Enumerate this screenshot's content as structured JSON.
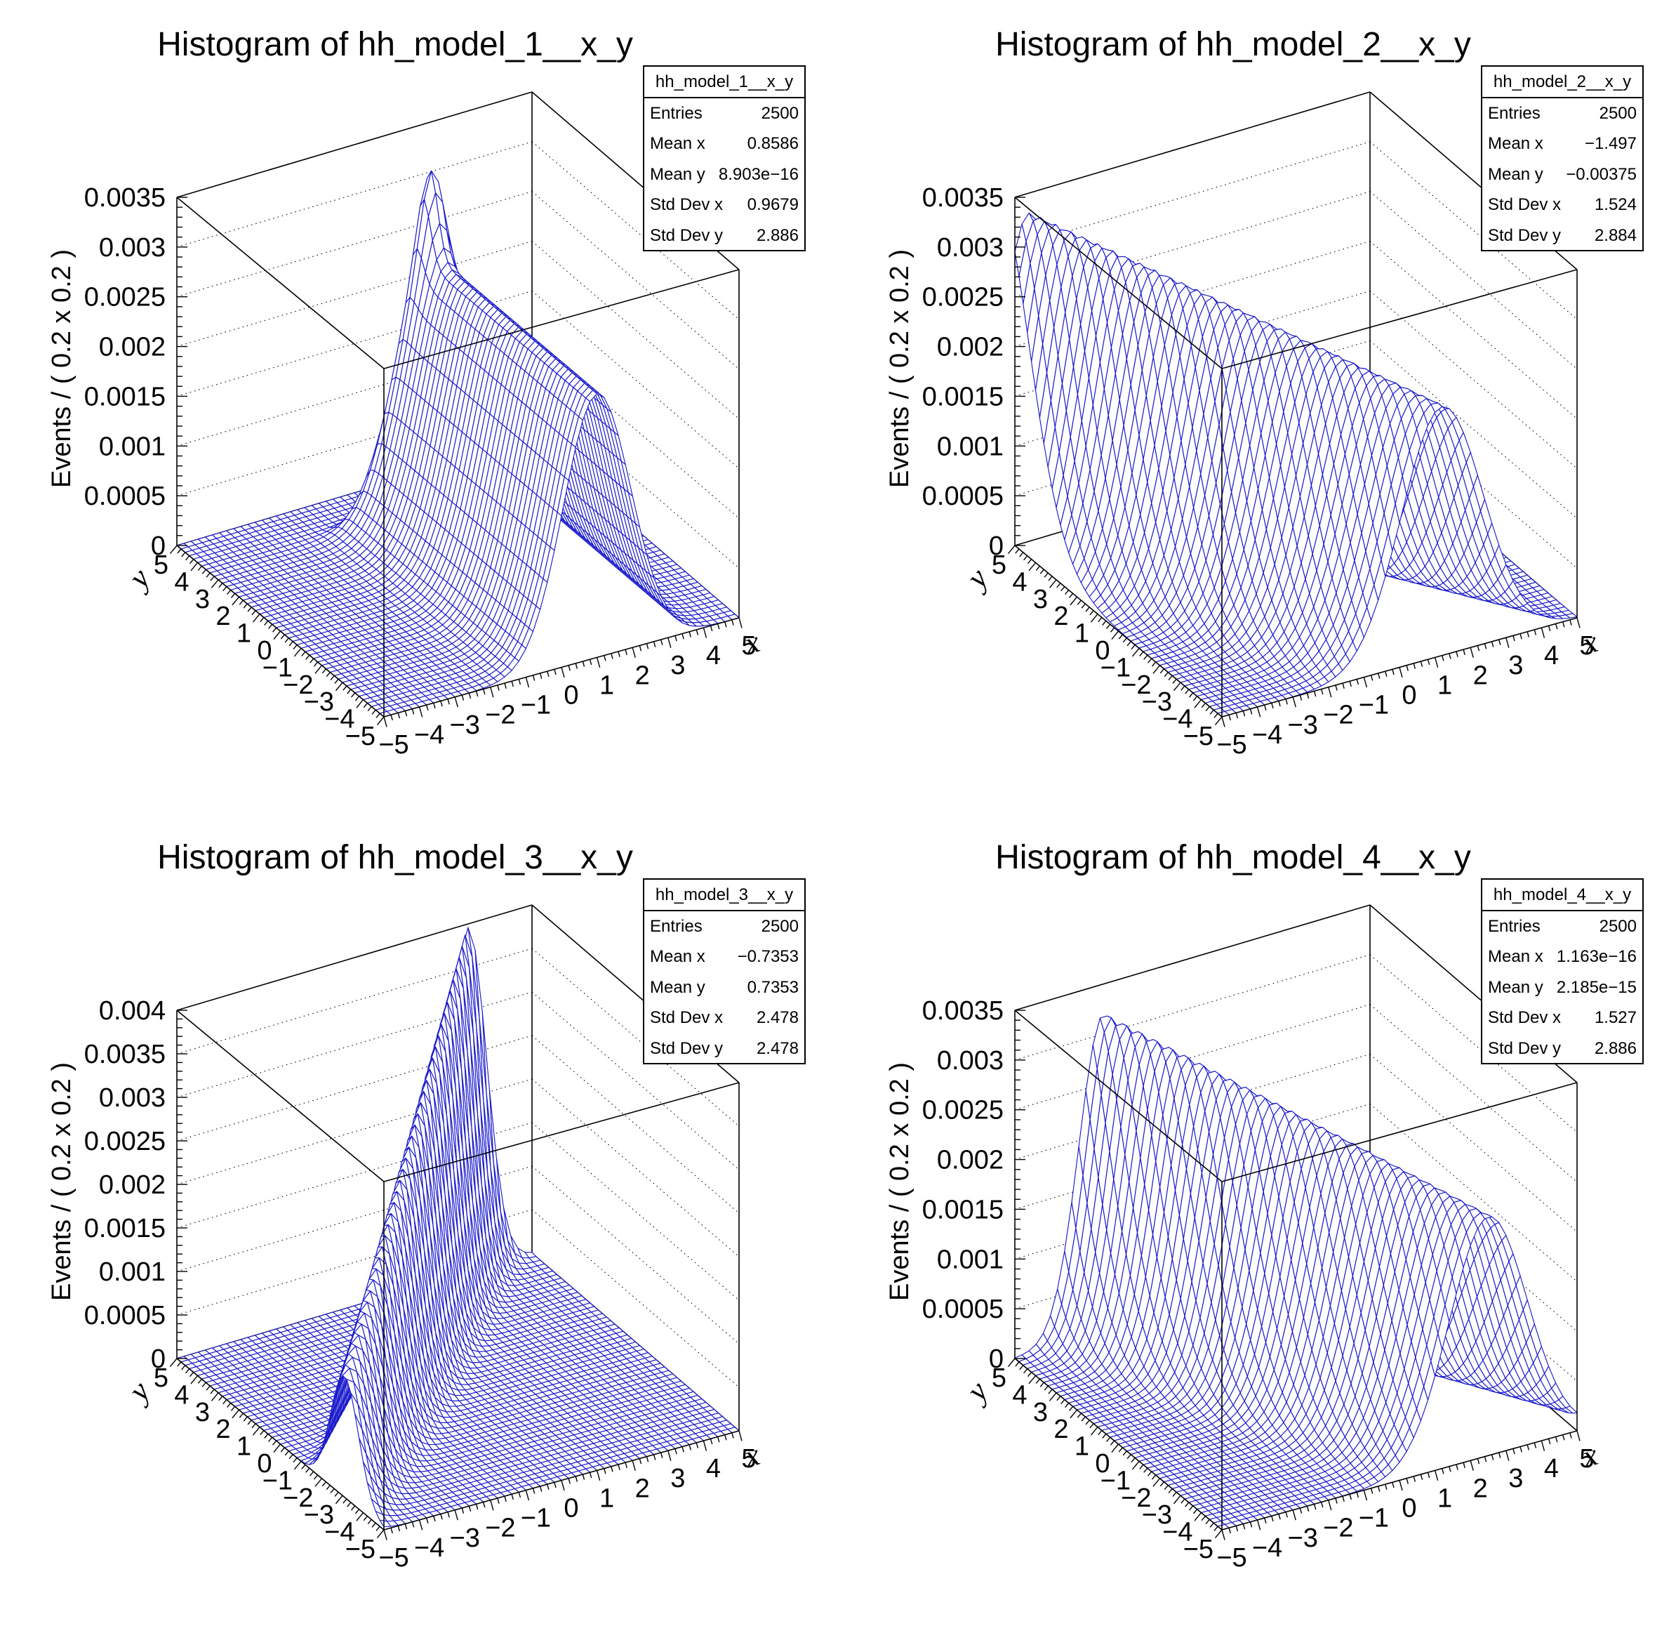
{
  "page": {
    "background": "#ffffff"
  },
  "colors": {
    "mesh": "#1c1ccd",
    "frame": "#000000",
    "grid_dotted": "#000000",
    "text": "#000000",
    "stats_bg": "#ffffff"
  },
  "stat_labels": [
    "Entries",
    "Mean x",
    "Mean y",
    "Std Dev x",
    "Std Dev y"
  ],
  "chart_data": [
    {
      "type": "3d-surface-histogram",
      "title": "Histogram of hh_model_1__x_y",
      "stats": {
        "name": "hh_model_1__x_y",
        "rows": [
          [
            "Entries",
            "2500"
          ],
          [
            "Mean x",
            "0.8586"
          ],
          [
            "Mean y",
            "8.903e−16"
          ],
          [
            "Std Dev x",
            "0.9679"
          ],
          [
            "Std Dev y",
            "2.886"
          ]
        ]
      },
      "axes": {
        "x": {
          "title": "x",
          "min": -5,
          "max": 5,
          "tick_labels": [
            "−5",
            "−4",
            "−3",
            "−2",
            "−1",
            "0",
            "1",
            "2",
            "3",
            "4",
            "5"
          ]
        },
        "y": {
          "title": "y",
          "min": -5,
          "max": 5,
          "tick_labels": [
            "5",
            "4",
            "3",
            "2",
            "1",
            "0",
            "−1",
            "−2",
            "−3",
            "−4",
            "−5"
          ]
        },
        "z": {
          "title": "Events / ( 0.2 x 0.2 )",
          "min": 0,
          "max": 0.0035,
          "tick_step": 0.0005,
          "tick_labels": [
            "0",
            "0.0005",
            "0.001",
            "0.0015",
            "0.002",
            "0.0025",
            "0.003",
            "0.0035"
          ]
        }
      },
      "bins": {
        "nx": 50,
        "ny": 50,
        "width_x": 0.2,
        "width_y": 0.2
      },
      "surface": {
        "model": "gauss_ridge_in_x",
        "params": {
          "a0": 0.00265,
          "a1": 0,
          "mu0": 1.0,
          "mu1": 0,
          "s0": 0.95,
          "s1": 0,
          "cut": 3.55,
          "cutw": 0.12,
          "spike": {
            "amp": 0.0009,
            "mx": 1.05,
            "my": 3.1,
            "sx": 0.33,
            "sy": 0.38
          }
        }
      }
    },
    {
      "type": "3d-surface-histogram",
      "title": "Histogram of hh_model_2__x_y",
      "stats": {
        "name": "hh_model_2__x_y",
        "rows": [
          [
            "Entries",
            "2500"
          ],
          [
            "Mean x",
            "−1.497"
          ],
          [
            "Mean y",
            "−0.00375"
          ],
          [
            "Std Dev x",
            "1.524"
          ],
          [
            "Std Dev y",
            "2.884"
          ]
        ]
      },
      "axes": {
        "x": {
          "title": "x",
          "min": -5,
          "max": 5,
          "tick_labels": [
            "−5",
            "−4",
            "−3",
            "−2",
            "−1",
            "0",
            "1",
            "2",
            "3",
            "4",
            "5"
          ]
        },
        "y": {
          "title": "y",
          "min": -5,
          "max": 5,
          "tick_labels": [
            "5",
            "4",
            "3",
            "2",
            "1",
            "0",
            "−1",
            "−2",
            "−3",
            "−4",
            "−5"
          ]
        },
        "z": {
          "title": "Events / ( 0.2 x 0.2 )",
          "min": 0,
          "max": 0.0035,
          "tick_step": 0.0005,
          "tick_labels": [
            "0",
            "0.0005",
            "0.001",
            "0.0015",
            "0.002",
            "0.0025",
            "0.003",
            "0.0035"
          ]
        }
      },
      "bins": {
        "nx": 50,
        "ny": 50,
        "width_x": 0.2,
        "width_y": 0.2
      },
      "surface": {
        "model": "gauss_ridge_in_x",
        "params": {
          "a0": 0.0029,
          "a1": 8e-05,
          "mu0": -1.7,
          "mu1": -0.58,
          "s0": 1.0,
          "s1": -0.03
        }
      }
    },
    {
      "type": "3d-surface-histogram",
      "title": "Histogram of hh_model_3__x_y",
      "stats": {
        "name": "hh_model_3__x_y",
        "rows": [
          [
            "Entries",
            "2500"
          ],
          [
            "Mean x",
            "−0.7353"
          ],
          [
            "Mean y",
            "0.7353"
          ],
          [
            "Std Dev x",
            "2.478"
          ],
          [
            "Std Dev y",
            "2.478"
          ]
        ]
      },
      "axes": {
        "x": {
          "title": "x",
          "min": -5,
          "max": 5,
          "tick_labels": [
            "−5",
            "−4",
            "−3",
            "−2",
            "−1",
            "0",
            "1",
            "2",
            "3",
            "4",
            "5"
          ]
        },
        "y": {
          "title": "y",
          "min": -5,
          "max": 5,
          "tick_labels": [
            "5",
            "4",
            "3",
            "2",
            "1",
            "0",
            "−1",
            "−2",
            "−3",
            "−4",
            "−5"
          ]
        },
        "z": {
          "title": "Events / ( 0.2 x 0.2 )",
          "min": 0,
          "max": 0.004,
          "tick_step": 0.0005,
          "tick_labels": [
            "0",
            "0.0005",
            "0.001",
            "0.0015",
            "0.002",
            "0.0025",
            "0.003",
            "0.0035",
            "0.004"
          ]
        }
      },
      "bins": {
        "nx": 50,
        "ny": 50,
        "width_x": 0.2,
        "width_y": 0.2
      },
      "surface": {
        "model": "diagonal_gauss_ridge",
        "params": {
          "a0": 0.0024,
          "a1": 0.00032,
          "aCap": 0.00396,
          "mu0": -1.8,
          "mu1": 1.0,
          "s0": 0.62,
          "s1": -0.02
        }
      }
    },
    {
      "type": "3d-surface-histogram",
      "title": "Histogram of hh_model_4__x_y",
      "stats": {
        "name": "hh_model_4__x_y",
        "rows": [
          [
            "Entries",
            "2500"
          ],
          [
            "Mean x",
            "1.163e−16"
          ],
          [
            "Mean y",
            "2.185e−15"
          ],
          [
            "Std Dev x",
            "1.527"
          ],
          [
            "Std Dev y",
            "2.886"
          ]
        ]
      },
      "axes": {
        "x": {
          "title": "x",
          "min": -5,
          "max": 5,
          "tick_labels": [
            "−5",
            "−4",
            "−3",
            "−2",
            "−1",
            "0",
            "1",
            "2",
            "3",
            "4",
            "5"
          ]
        },
        "y": {
          "title": "y",
          "min": -5,
          "max": 5,
          "tick_labels": [
            "5",
            "4",
            "3",
            "2",
            "1",
            "0",
            "−1",
            "−2",
            "−3",
            "−4",
            "−5"
          ]
        },
        "z": {
          "title": "Events / ( 0.2 x 0.2 )",
          "min": 0,
          "max": 0.0035,
          "tick_step": 0.0005,
          "tick_labels": [
            "0",
            "0.0005",
            "0.001",
            "0.0015",
            "0.002",
            "0.0025",
            "0.003",
            "0.0035"
          ]
        }
      },
      "bins": {
        "nx": 50,
        "ny": 50,
        "width_x": 0.2,
        "width_y": 0.2
      },
      "surface": {
        "model": "gauss_ridge_in_x",
        "params": {
          "a0": 0.0028,
          "a1": 8e-05,
          "mu0": 0.0,
          "mu1": -0.5,
          "s0": 0.9,
          "s1": -0.04
        }
      }
    }
  ]
}
